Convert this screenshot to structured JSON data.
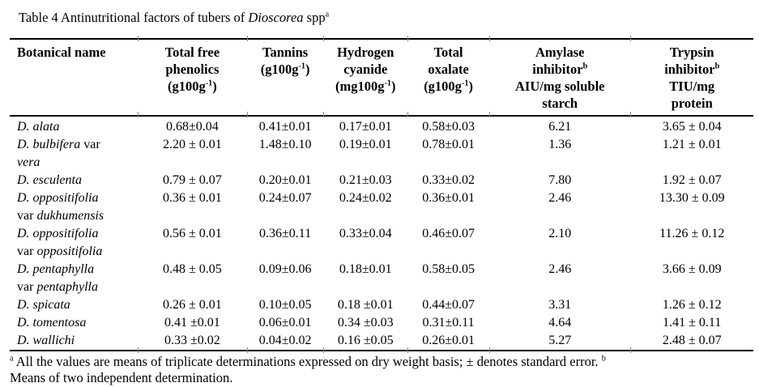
{
  "title": "Table 4 Antinutritional factors of tubers of *Dioscorea* spp^{a}",
  "table": {
    "columns": [
      {
        "label": "Botanical name"
      },
      {
        "label": "Total free\nphenolics\n(g100g^{-1})"
      },
      {
        "label": "Tannins\n(g100g^{-1})"
      },
      {
        "label": "Hydrogen\ncyanide\n(mg100g^{-1})"
      },
      {
        "label": "Total\noxalate\n(g100g^{-1})"
      },
      {
        "label": "Amylase\ninhibitor^{b}\nAIU/mg soluble\nstarch"
      },
      {
        "label": "Trypsin\ninhibitor^{b}\nTIU/mg\nprotein"
      }
    ],
    "rows": [
      {
        "name": "*D. alata*",
        "values": [
          "0.68±0.04",
          "0.41±0.01",
          "0.17±0.01",
          "0.58±0.03",
          "6.21",
          "3.65 ± 0.04"
        ]
      },
      {
        "name": "*D. bulbifera* var\n*vera*",
        "values": [
          "2.20 ± 0.01",
          "1.48±0.10",
          "0.19±0.01",
          "0.78±0.01",
          "1.36",
          "1.21 ± 0.01"
        ]
      },
      {
        "name": "*D. esculenta*",
        "values": [
          "0.79 ± 0.07",
          "0.20±0.01",
          "0.21±0.03",
          "0.33±0.02",
          "7.80",
          "1.92 ± 0.07"
        ]
      },
      {
        "name": "*D. oppositifolia*\nvar *dukhumensis*",
        "values": [
          "0.36 ± 0.01",
          "0.24±0.07",
          "0.24±0.02",
          "0.36±0.01",
          "2.46",
          "13.30 ± 0.09"
        ]
      },
      {
        "name": "*D. oppositifolia*\nvar *oppositifolia*",
        "values": [
          "0.56 ± 0.01",
          "0.36±0.11",
          "0.33±0.04",
          "0.46±0.07",
          "2.10",
          "11.26 ± 0.12"
        ]
      },
      {
        "name": "*D. pentaphylla*\nvar *pentaphylla*",
        "values": [
          "0.48 ± 0.05",
          "0.09±0.06",
          "0.18±0.01",
          "0.58±0.05",
          "2.46",
          "3.66 ± 0.09"
        ]
      },
      {
        "name": "*D. spicata*",
        "values": [
          "0.26 ± 0.01",
          "0.10±0.05",
          "0.18 ±0.01",
          "0.44±0.07",
          "3.31",
          "1.26 ± 0.12"
        ]
      },
      {
        "name": "*D. tomentosa*",
        "values": [
          "0.41 ±0.01",
          "0.06±0.01",
          "0.34 ±0.03",
          "0.31±0.11",
          "4.64",
          "1.41 ± 0.11"
        ]
      },
      {
        "name": "*D. wallichi*",
        "values": [
          "0.33 ±0.02",
          "0.04±0.02",
          "0.16 ±0.05",
          "0.26±0.01",
          "5.27",
          "2.48 ± 0.07"
        ]
      }
    ]
  },
  "footnote": "^{a} All the values are means of triplicate determinations expressed on dry weight basis;  ± denotes standard error. ^{b}\nMeans of two independent determination."
}
